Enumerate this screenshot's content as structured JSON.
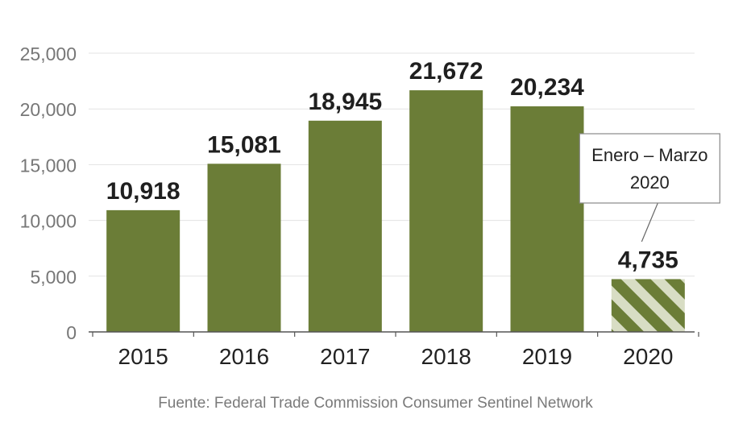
{
  "chart_data": {
    "type": "bar",
    "categories": [
      "2015",
      "2016",
      "2017",
      "2018",
      "2019",
      "2020"
    ],
    "values": [
      10918,
      15081,
      18945,
      21672,
      20234,
      4735
    ],
    "value_labels": [
      "10,918",
      "15,081",
      "18,945",
      "21,672",
      "20,234",
      "4,735"
    ],
    "ylim": [
      0,
      25000
    ],
    "yticks": [
      0,
      5000,
      10000,
      15000,
      20000,
      25000
    ],
    "ytick_labels": [
      "0",
      "5,000",
      "10,000",
      "15,000",
      "20,000",
      "25,000"
    ],
    "grid": true,
    "partial_index": 5,
    "annotation": {
      "line1": "Enero – Marzo",
      "line2": "2020"
    },
    "colors": {
      "bar": "#6b7d37",
      "hatch_light": "#d8ddc4",
      "grid": "#e3e3e3",
      "axis": "#555555"
    }
  },
  "source": "Fuente: Federal Trade Commission Consumer Sentinel Network"
}
